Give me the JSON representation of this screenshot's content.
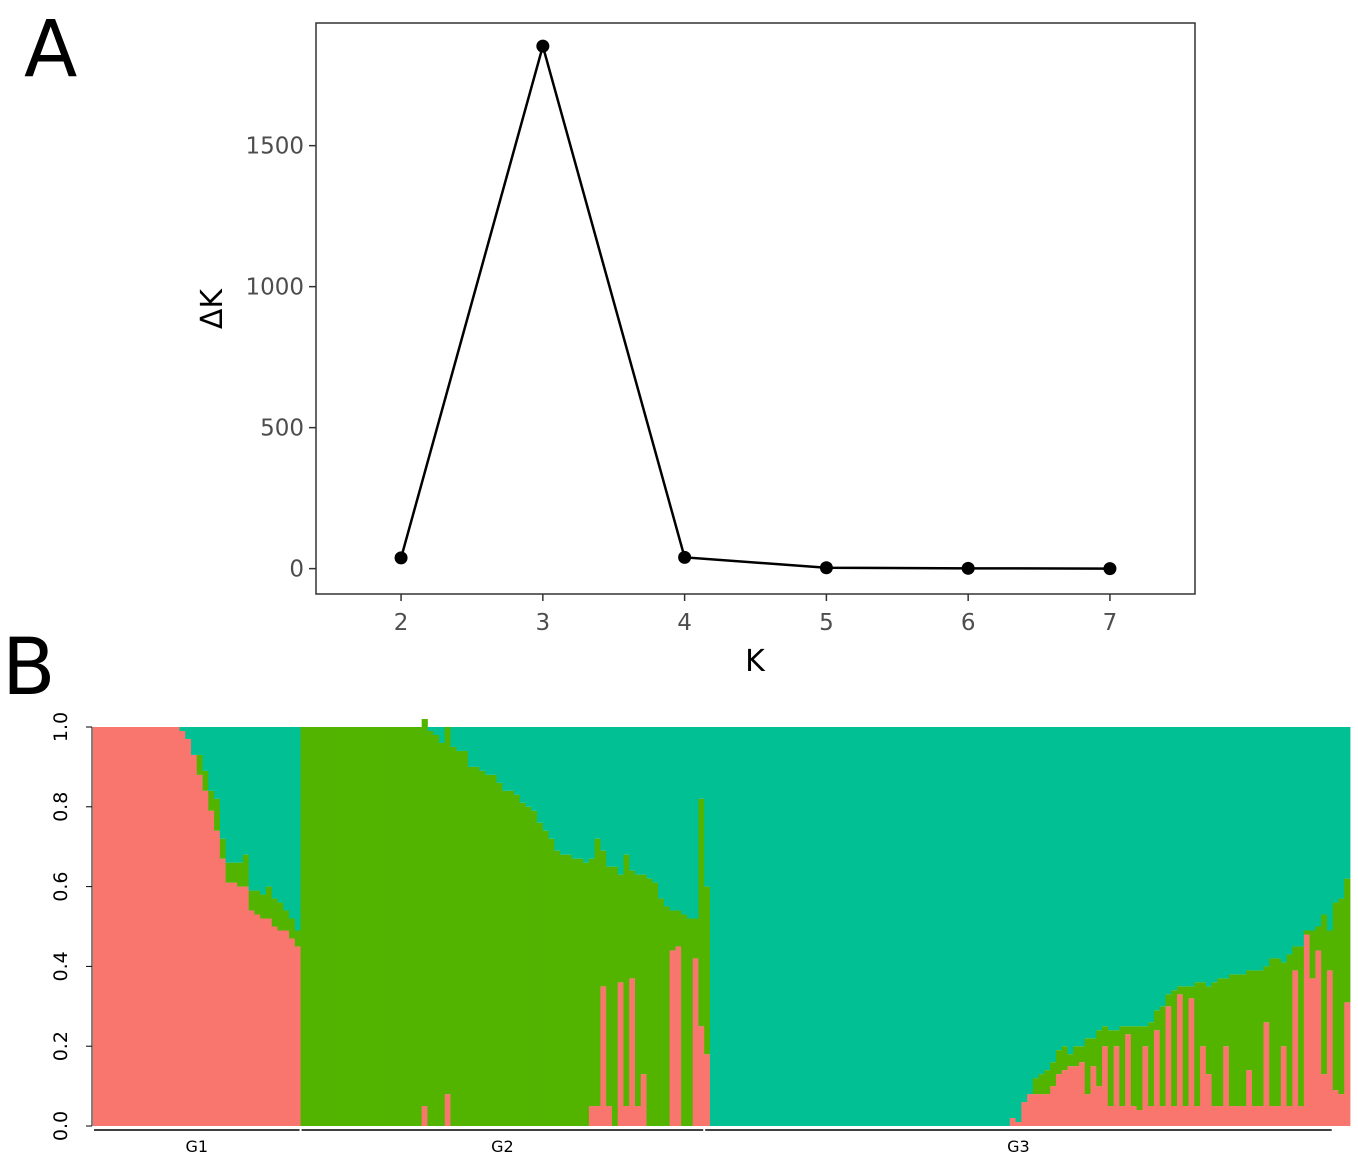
{
  "panels": {
    "a_label": "A",
    "b_label": "B"
  },
  "chart_data": [
    {
      "type": "line",
      "title": "",
      "xlabel": "K",
      "ylabel": "ΔK",
      "x": [
        2,
        3,
        4,
        5,
        6,
        7
      ],
      "y": [
        38,
        1853,
        40,
        3,
        1,
        0
      ],
      "xlim": [
        1.4,
        7.6
      ],
      "ylim": [
        -90,
        1935
      ],
      "xticks": [
        "2",
        "3",
        "4",
        "5",
        "6",
        "7"
      ],
      "yticks": [
        "0",
        "500",
        "1000",
        "1500"
      ],
      "grid": false,
      "legend": "none",
      "line_color": "#000000",
      "marker_color": "#000000"
    },
    {
      "type": "bar",
      "stacked": true,
      "title": "",
      "xlabel": "",
      "ylabel": "",
      "ylim": [
        0,
        1
      ],
      "yticks": [
        "0.0",
        "0.2",
        "0.4",
        "0.6",
        "0.8",
        "1.0"
      ],
      "groups": [
        {
          "label": "G1",
          "count": 36
        },
        {
          "label": "G2",
          "count": 70
        },
        {
          "label": "G3",
          "count": 109
        }
      ],
      "series": [
        {
          "color": "#F8766D"
        },
        {
          "color": "#53B400"
        },
        {
          "color": "#00C094"
        }
      ],
      "values_cluster1": [
        1,
        1,
        1,
        1,
        1,
        1,
        1,
        1,
        1,
        1,
        1,
        1,
        1,
        1,
        1,
        0.99,
        0.97,
        0.93,
        0.88,
        0.84,
        0.79,
        0.74,
        0.67,
        0.61,
        0.61,
        0.6,
        0.6,
        0.54,
        0.53,
        0.52,
        0.52,
        0.5,
        0.49,
        0.49,
        0.47,
        0.45,
        0,
        0,
        0,
        0,
        0,
        0,
        0,
        0,
        0,
        0,
        0,
        0,
        0,
        0,
        0,
        0,
        0,
        0,
        0,
        0,
        0,
        0.05,
        0,
        0,
        0,
        0.08,
        0,
        0,
        0,
        0,
        0,
        0,
        0,
        0,
        0,
        0,
        0,
        0,
        0,
        0,
        0,
        0,
        0,
        0,
        0,
        0,
        0,
        0,
        0,
        0,
        0.05,
        0.05,
        0.35,
        0.05,
        0,
        0.36,
        0.05,
        0.37,
        0.05,
        0.13,
        0,
        0,
        0,
        0,
        0.44,
        0.45,
        0,
        0,
        0.42,
        0.25,
        0.18,
        0,
        0,
        0,
        0,
        0,
        0,
        0,
        0,
        0,
        0,
        0,
        0,
        0,
        0,
        0,
        0,
        0,
        0,
        0,
        0,
        0,
        0,
        0,
        0,
        0,
        0,
        0,
        0,
        0,
        0,
        0,
        0,
        0,
        0,
        0,
        0,
        0,
        0,
        0,
        0,
        0,
        0,
        0,
        0,
        0,
        0,
        0,
        0,
        0,
        0,
        0,
        0,
        0.02,
        0.01,
        0.06,
        0.08,
        0.08,
        0.08,
        0.08,
        0.1,
        0.13,
        0.14,
        0.15,
        0.15,
        0.16,
        0.08,
        0.15,
        0.1,
        0.2,
        0.05,
        0.2,
        0.05,
        0.23,
        0.05,
        0.04,
        0.2,
        0.05,
        0.24,
        0.05,
        0.3,
        0.05,
        0.33,
        0.05,
        0.32,
        0.05,
        0.2,
        0.13,
        0.05,
        0.05,
        0.2,
        0.05,
        0.05,
        0.05,
        0.14,
        0.05,
        0.05,
        0.26,
        0.05,
        0.05,
        0.2,
        0.05,
        0.39,
        0.05,
        0.48,
        0.37,
        0.44,
        0.13,
        0.39,
        0.09,
        0.08,
        0.31
      ],
      "values_cluster2": [
        0,
        0,
        0,
        0,
        0,
        0,
        0,
        0,
        0,
        0,
        0,
        0,
        0,
        0,
        0,
        0,
        0,
        0,
        0.05,
        0.05,
        0.05,
        0.08,
        0.05,
        0.05,
        0.05,
        0.06,
        0.08,
        0.05,
        0.06,
        0.06,
        0.08,
        0.07,
        0.07,
        0.05,
        0.05,
        0.04,
        1,
        1,
        1,
        1,
        1,
        1,
        1,
        1,
        1,
        1,
        1,
        1,
        1,
        1,
        1,
        1,
        1,
        1,
        1,
        1,
        1,
        0.97,
        0.99,
        0.98,
        0.96,
        0.92,
        0.95,
        0.94,
        0.94,
        0.9,
        0.9,
        0.89,
        0.88,
        0.88,
        0.86,
        0.84,
        0.84,
        0.83,
        0.81,
        0.8,
        0.79,
        0.76,
        0.74,
        0.72,
        0.69,
        0.68,
        0.68,
        0.67,
        0.67,
        0.66,
        0.62,
        0.67,
        0.34,
        0.6,
        0.65,
        0.27,
        0.63,
        0.27,
        0.58,
        0.5,
        0.62,
        0.61,
        0.57,
        0.55,
        0.1,
        0.09,
        0.53,
        0.52,
        0.1,
        0.57,
        0.42,
        0,
        0,
        0,
        0,
        0,
        0,
        0,
        0,
        0,
        0,
        0,
        0,
        0,
        0,
        0,
        0,
        0,
        0,
        0,
        0,
        0,
        0,
        0,
        0,
        0,
        0,
        0,
        0,
        0,
        0,
        0,
        0,
        0,
        0,
        0,
        0,
        0,
        0,
        0,
        0,
        0,
        0,
        0,
        0,
        0,
        0,
        0,
        0,
        0,
        0,
        0,
        0,
        0,
        0,
        0,
        0,
        0.04,
        0.05,
        0.06,
        0.06,
        0.06,
        0.06,
        0.03,
        0.05,
        0.04,
        0.14,
        0.07,
        0.14,
        0.05,
        0.19,
        0.04,
        0.2,
        0.02,
        0.2,
        0.21,
        0.05,
        0.21,
        0.05,
        0.25,
        0.03,
        0.29,
        0.02,
        0.3,
        0.03,
        0.31,
        0.16,
        0.22,
        0.31,
        0.32,
        0.17,
        0.33,
        0.33,
        0.33,
        0.25,
        0.34,
        0.34,
        0.14,
        0.37,
        0.37,
        0.21,
        0.38,
        0.06,
        0.4,
        0.01,
        0.12,
        0.06,
        0.4,
        0.1,
        0.47,
        0.49,
        0.31
      ]
    }
  ]
}
